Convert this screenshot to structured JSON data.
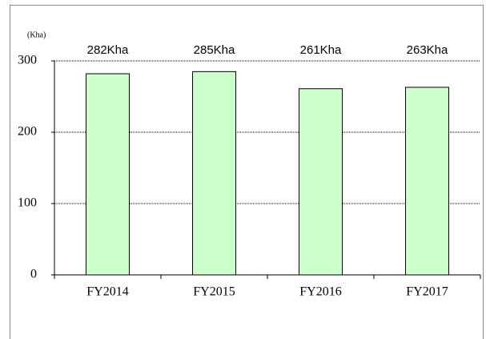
{
  "chart_data": {
    "type": "bar",
    "y_label": "(Kha)",
    "categories": [
      "FY2014",
      "FY2015",
      "FY2016",
      "FY2017"
    ],
    "values": [
      282,
      285,
      261,
      263
    ],
    "value_labels": [
      "282Kha",
      "285Kha",
      "261Kha",
      "263Kha"
    ],
    "color": "#ccffcc",
    "ylim": [
      0,
      300
    ],
    "yticks": [
      0,
      100,
      200,
      300
    ],
    "grid": true
  }
}
